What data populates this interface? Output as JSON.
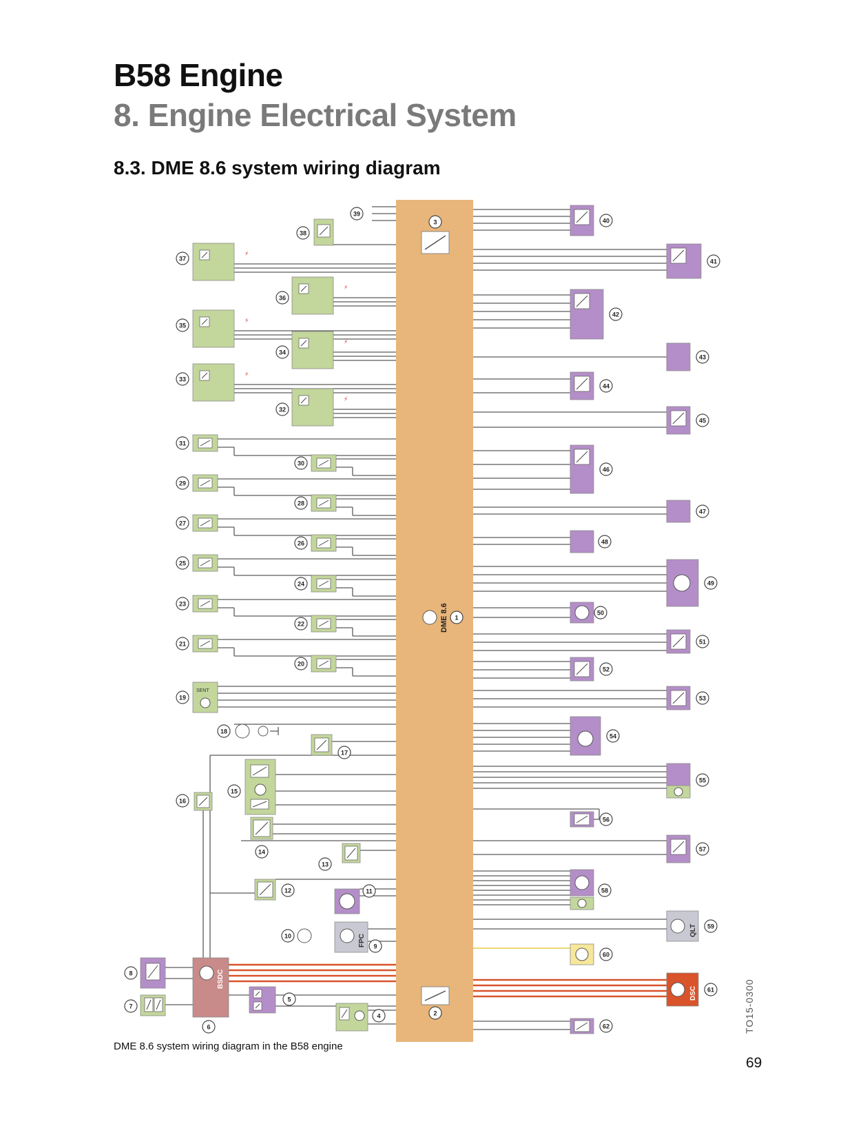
{
  "header": {
    "title": "B58 Engine",
    "chapter": "8. Engine Electrical System",
    "section": "8.3. DME 8.6 system wiring diagram"
  },
  "diagram": {
    "module_label": "DME 8.6",
    "colors": {
      "dme_block": "#e8b57a",
      "green_component": "#c3d69b",
      "purple_component": "#b48ec8",
      "grey_component": "#c9c9d3",
      "red_component": "#d9532b",
      "bsdc_block": "#c98a8a",
      "yellow_component": "#f6e79a",
      "wire": "#5a5a5a",
      "red_wire": "#d9532b"
    },
    "block_labels": {
      "bsdc": "BSDC",
      "fpc": "FPC",
      "qlt": "QLT",
      "dsc": "DSC",
      "sent": "SENT"
    },
    "numbers": [
      "1",
      "2",
      "3",
      "4",
      "5",
      "6",
      "7",
      "8",
      "9",
      "10",
      "11",
      "12",
      "13",
      "14",
      "15",
      "16",
      "17",
      "18",
      "19",
      "20",
      "21",
      "22",
      "23",
      "24",
      "25",
      "26",
      "27",
      "28",
      "29",
      "30",
      "31",
      "32",
      "33",
      "34",
      "35",
      "36",
      "37",
      "38",
      "39",
      "40",
      "41",
      "42",
      "43",
      "44",
      "45",
      "46",
      "47",
      "48",
      "49",
      "50",
      "51",
      "52",
      "53",
      "54",
      "55",
      "56",
      "57",
      "58",
      "59",
      "60",
      "61",
      "62"
    ]
  },
  "caption": "DME 8.6 system wiring diagram in the B58 engine",
  "page_number": "69",
  "doc_id": "TO15-0300"
}
